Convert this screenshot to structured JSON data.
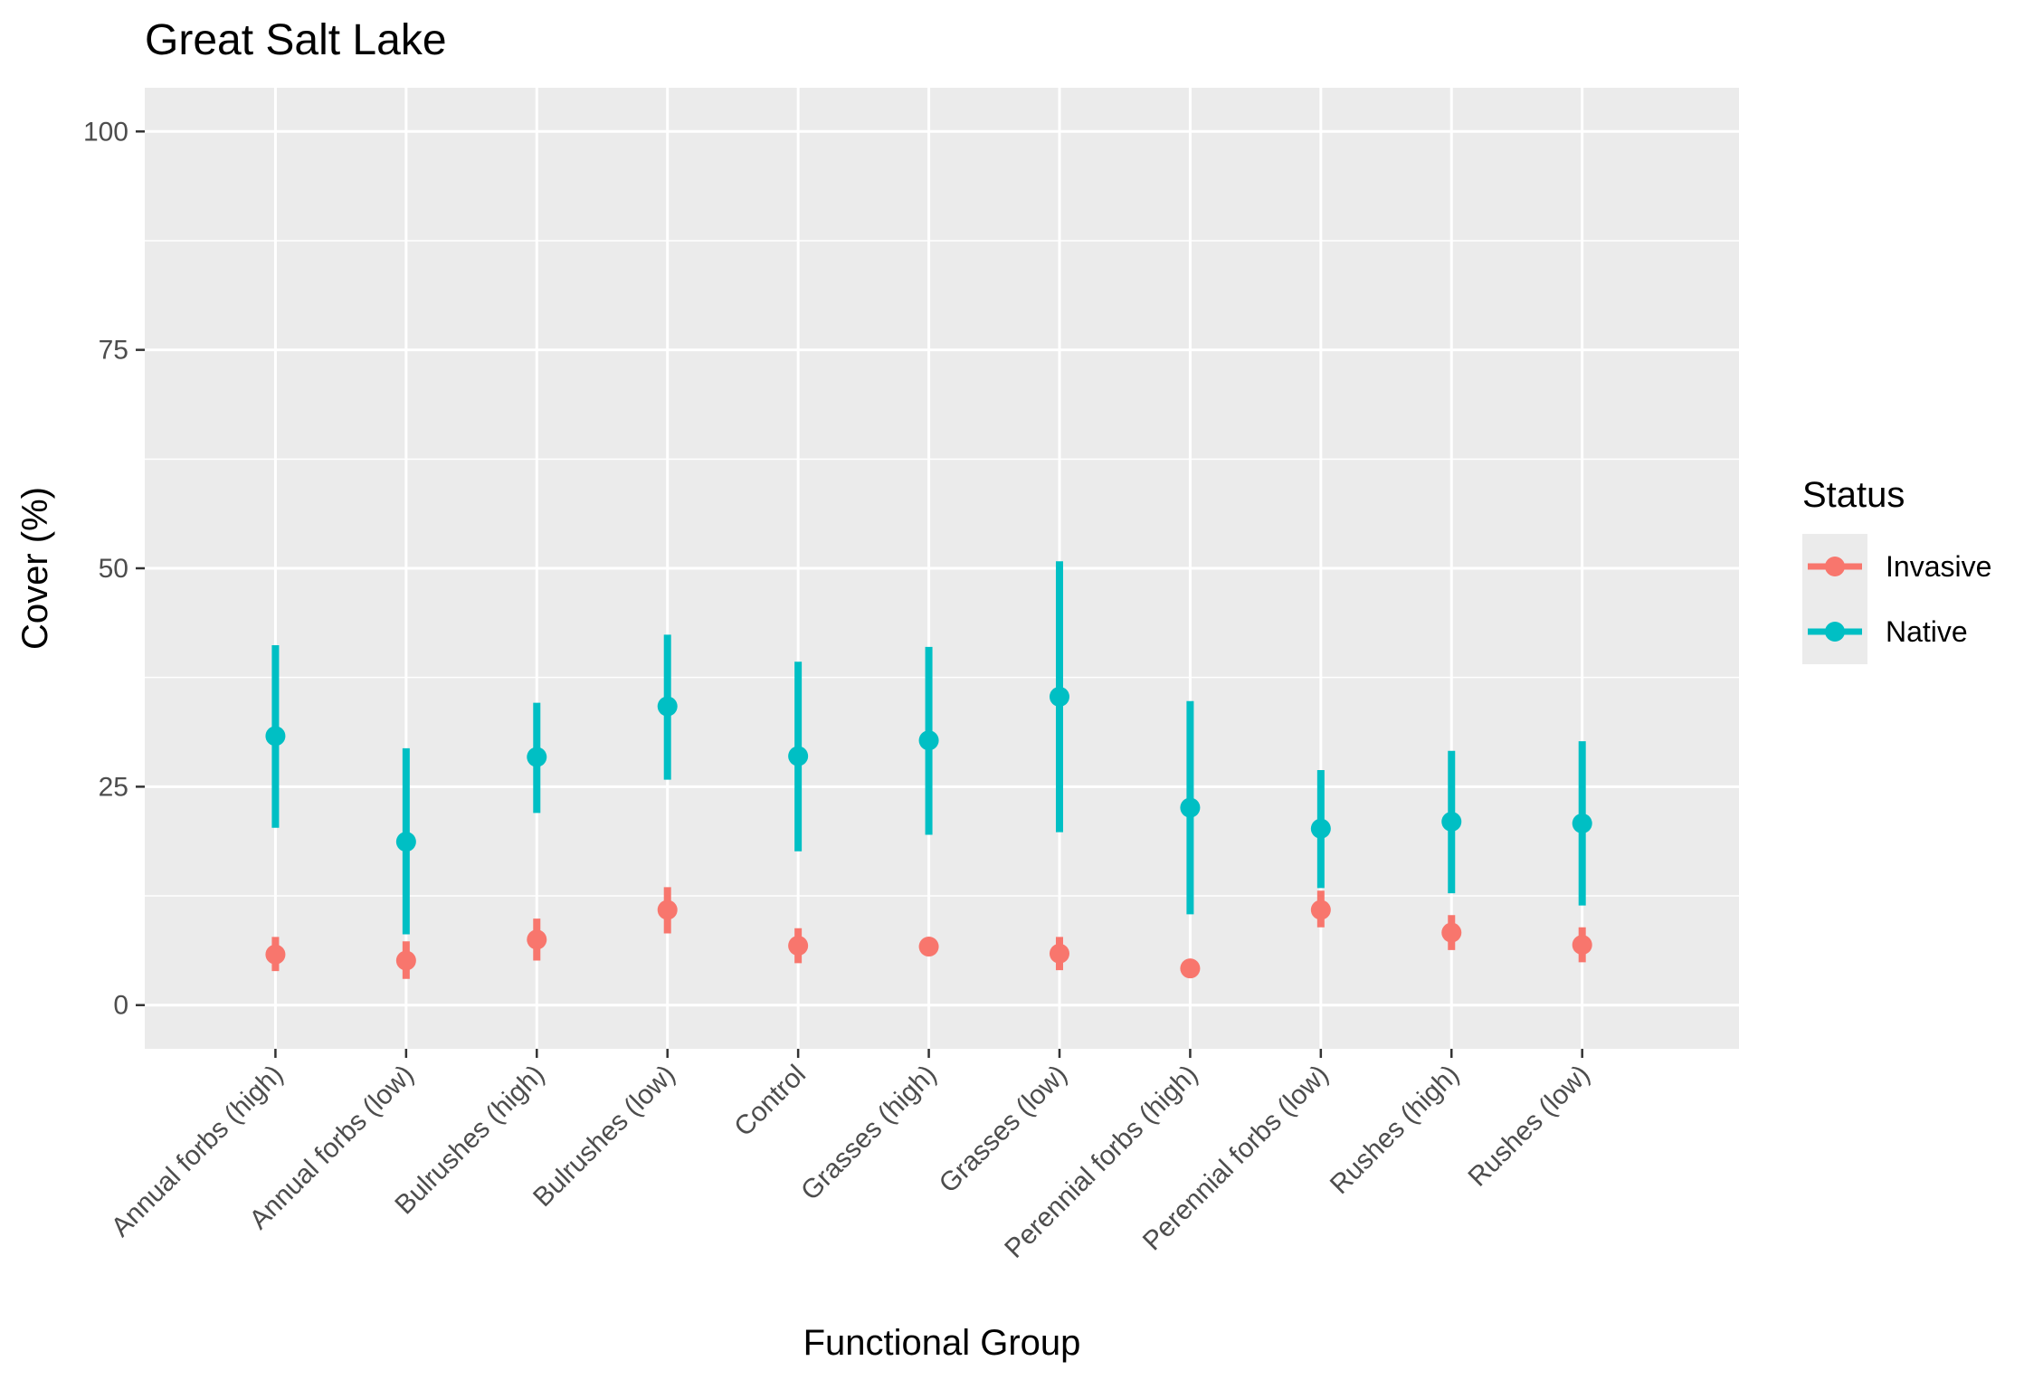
{
  "chart_data": {
    "type": "scatter",
    "title": "Great Salt Lake",
    "xlabel": "Functional Group",
    "ylabel": "Cover (%)",
    "categories": [
      "Annual forbs (high)",
      "Annual forbs (low)",
      "Bulrushes (high)",
      "Bulrushes (low)",
      "Control",
      "Grasses (high)",
      "Grasses (low)",
      "Perennial forbs (high)",
      "Perennial forbs (low)",
      "Rushes (high)",
      "Rushes (low)"
    ],
    "ylim": [
      -5,
      105
    ],
    "yticks": [
      0,
      25,
      50,
      75,
      100
    ],
    "grid": true,
    "legend": {
      "title": "Status",
      "position": "right"
    },
    "series": [
      {
        "name": "Invasive",
        "color": "#F8766D",
        "values": [
          5.8,
          5.1,
          7.5,
          10.9,
          6.8,
          6.7,
          5.9,
          4.2,
          10.9,
          8.3,
          6.9
        ],
        "lower": [
          3.9,
          3.0,
          5.1,
          8.2,
          4.8,
          6.7,
          4.0,
          4.2,
          8.9,
          6.3,
          4.9
        ],
        "upper": [
          7.8,
          7.3,
          9.9,
          13.5,
          8.8,
          6.7,
          7.8,
          4.2,
          13.1,
          10.3,
          8.9
        ]
      },
      {
        "name": "Native",
        "color": "#00BFC4",
        "values": [
          30.8,
          18.7,
          28.4,
          34.2,
          28.5,
          30.3,
          35.3,
          22.6,
          20.2,
          21.0,
          20.8
        ],
        "lower": [
          20.3,
          8.1,
          22.0,
          25.8,
          17.6,
          19.5,
          19.8,
          10.4,
          13.4,
          12.8,
          11.4
        ],
        "upper": [
          41.2,
          29.4,
          34.6,
          42.4,
          39.3,
          41.0,
          50.8,
          34.8,
          26.9,
          29.1,
          30.2
        ]
      }
    ]
  }
}
